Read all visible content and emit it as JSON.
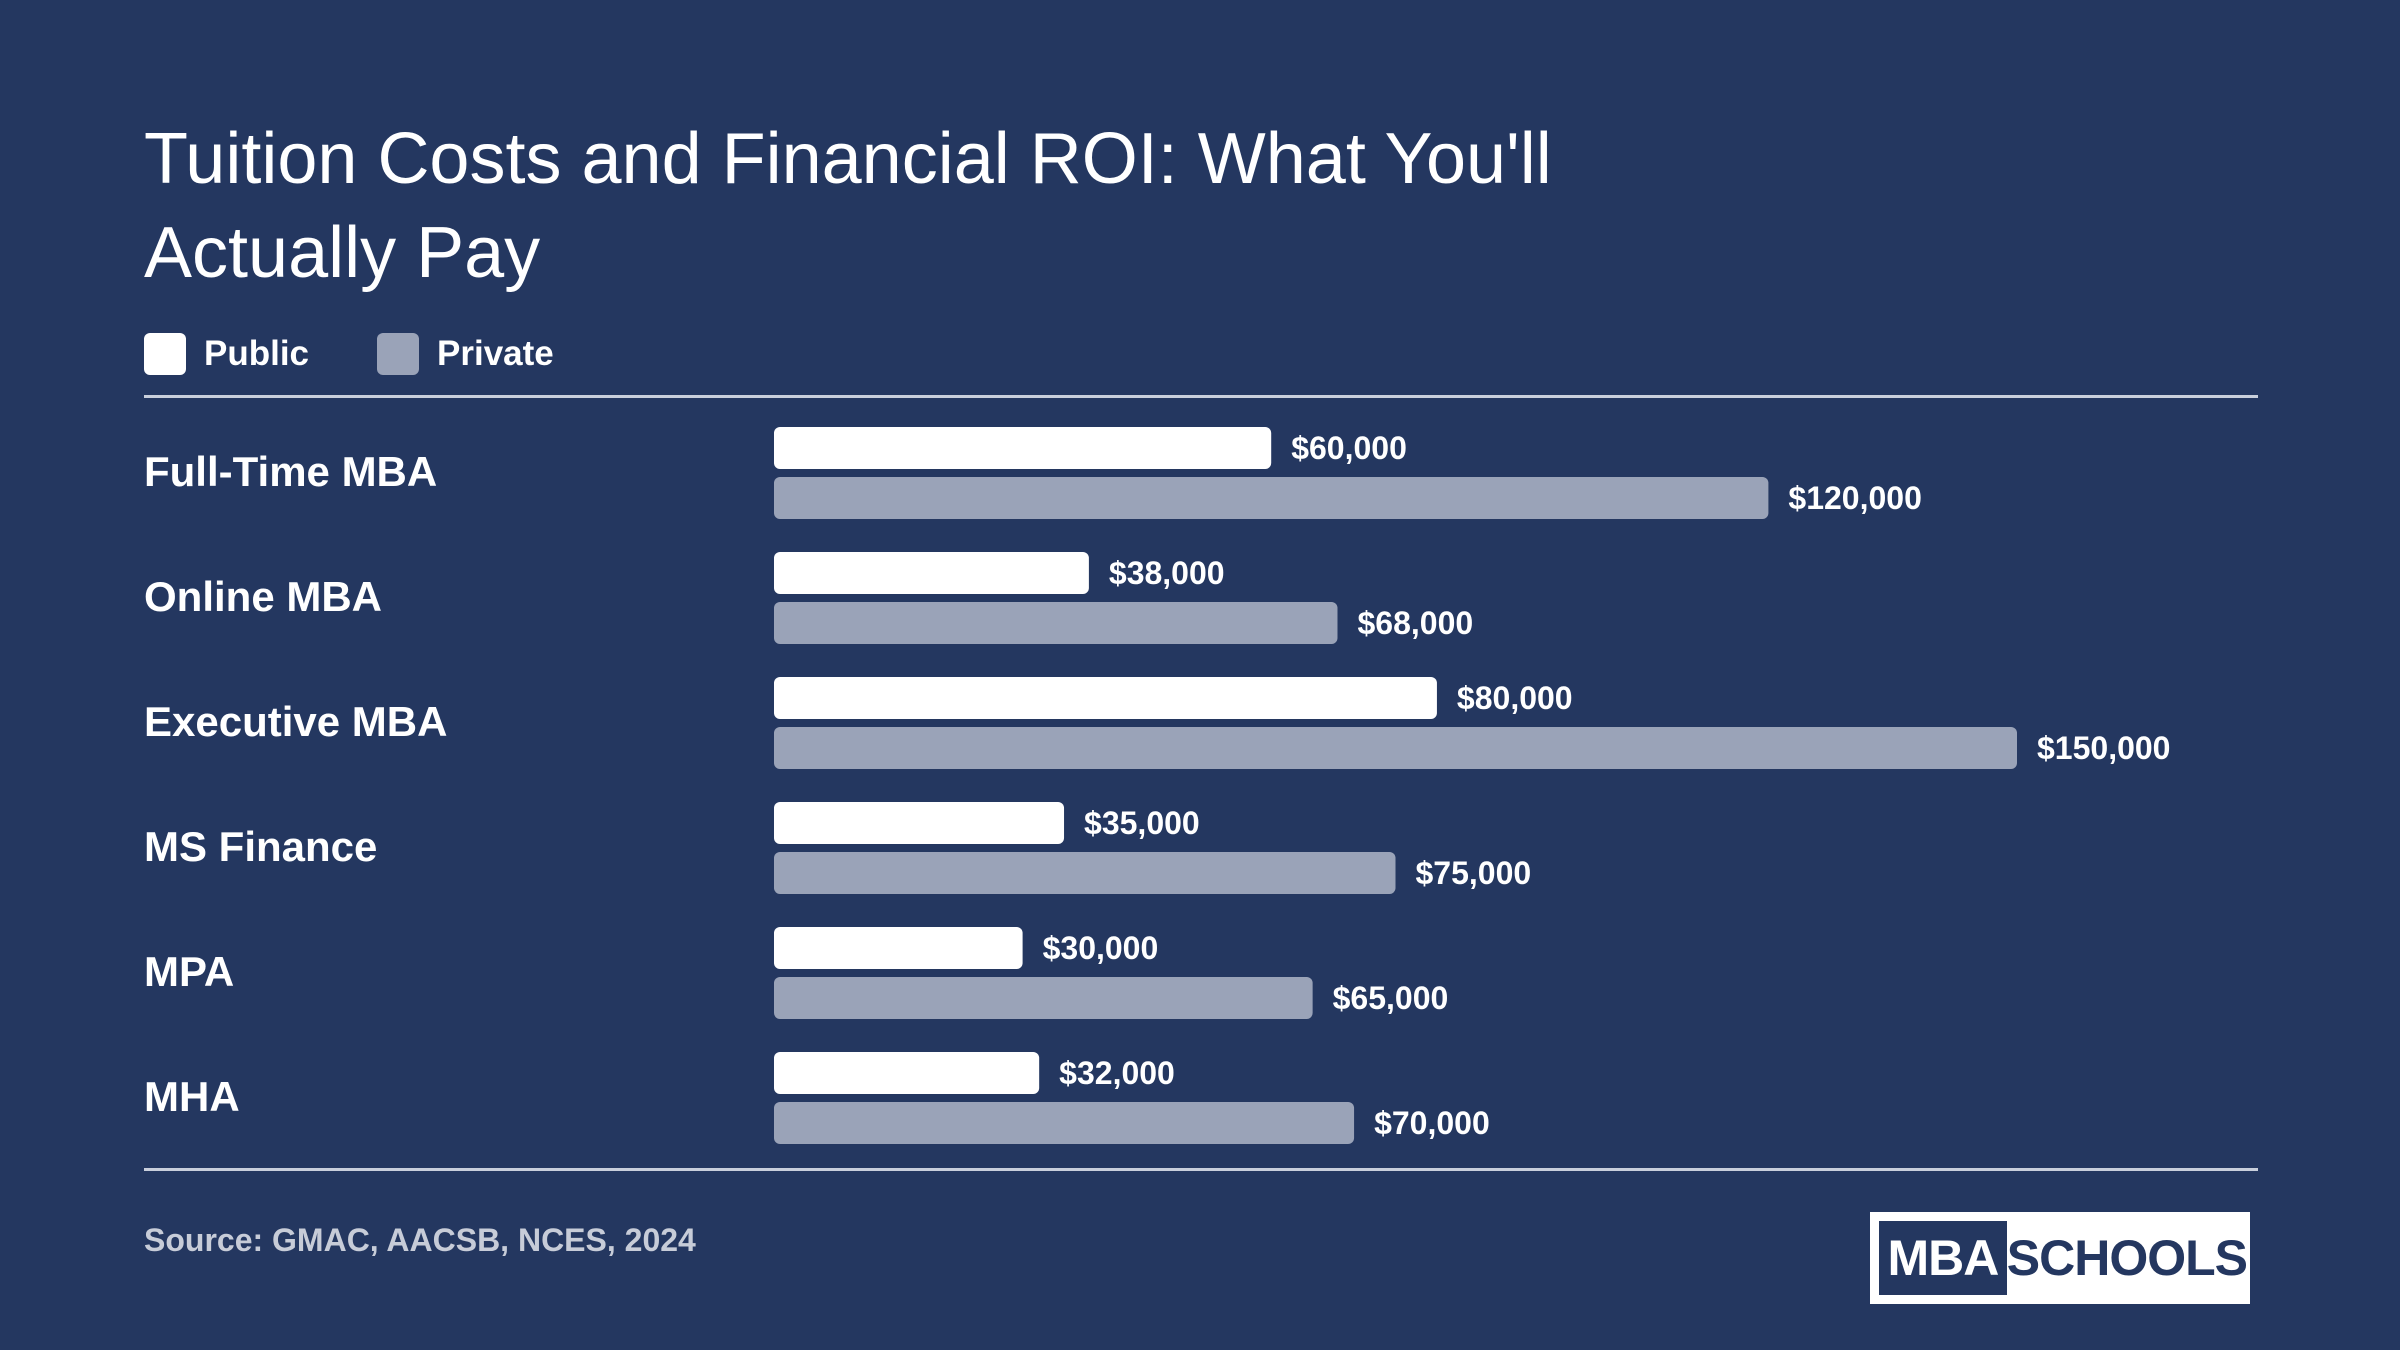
{
  "header": {
    "title": "Tuition Costs and Financial ROI: What You'll Actually Pay"
  },
  "legend": {
    "public_label": "Public",
    "private_label": "Private"
  },
  "colors": {
    "background": "#243760",
    "public": "#ffffff",
    "private": "#9aa3b8",
    "rule": "#c9cfdc"
  },
  "chart_data": {
    "type": "bar",
    "orientation": "horizontal",
    "title": "Tuition Costs and Financial ROI: What You'll Actually Pay",
    "categories": [
      "Full-Time MBA",
      "Online MBA",
      "Executive MBA",
      "MS Finance",
      "MPA",
      "MHA"
    ],
    "series": [
      {
        "name": "Public",
        "values": [
          60000,
          38000,
          80000,
          35000,
          30000,
          32000
        ],
        "labels": [
          "$60,000",
          "$38,000",
          "$80,000",
          "$35,000",
          "$30,000",
          "$32,000"
        ]
      },
      {
        "name": "Private",
        "values": [
          120000,
          68000,
          150000,
          75000,
          65000,
          70000
        ],
        "labels": [
          "$120,000",
          "$68,000",
          "$150,000",
          "$75,000",
          "$65,000",
          "$70,000"
        ]
      }
    ],
    "xlim": [
      0,
      165000
    ],
    "legend_position": "top-left",
    "grid": false
  },
  "footer": {
    "source": "Source: GMAC, AACSB, NCES, 2024",
    "logo_left": "MBA",
    "logo_right": "SCHOOLS"
  }
}
